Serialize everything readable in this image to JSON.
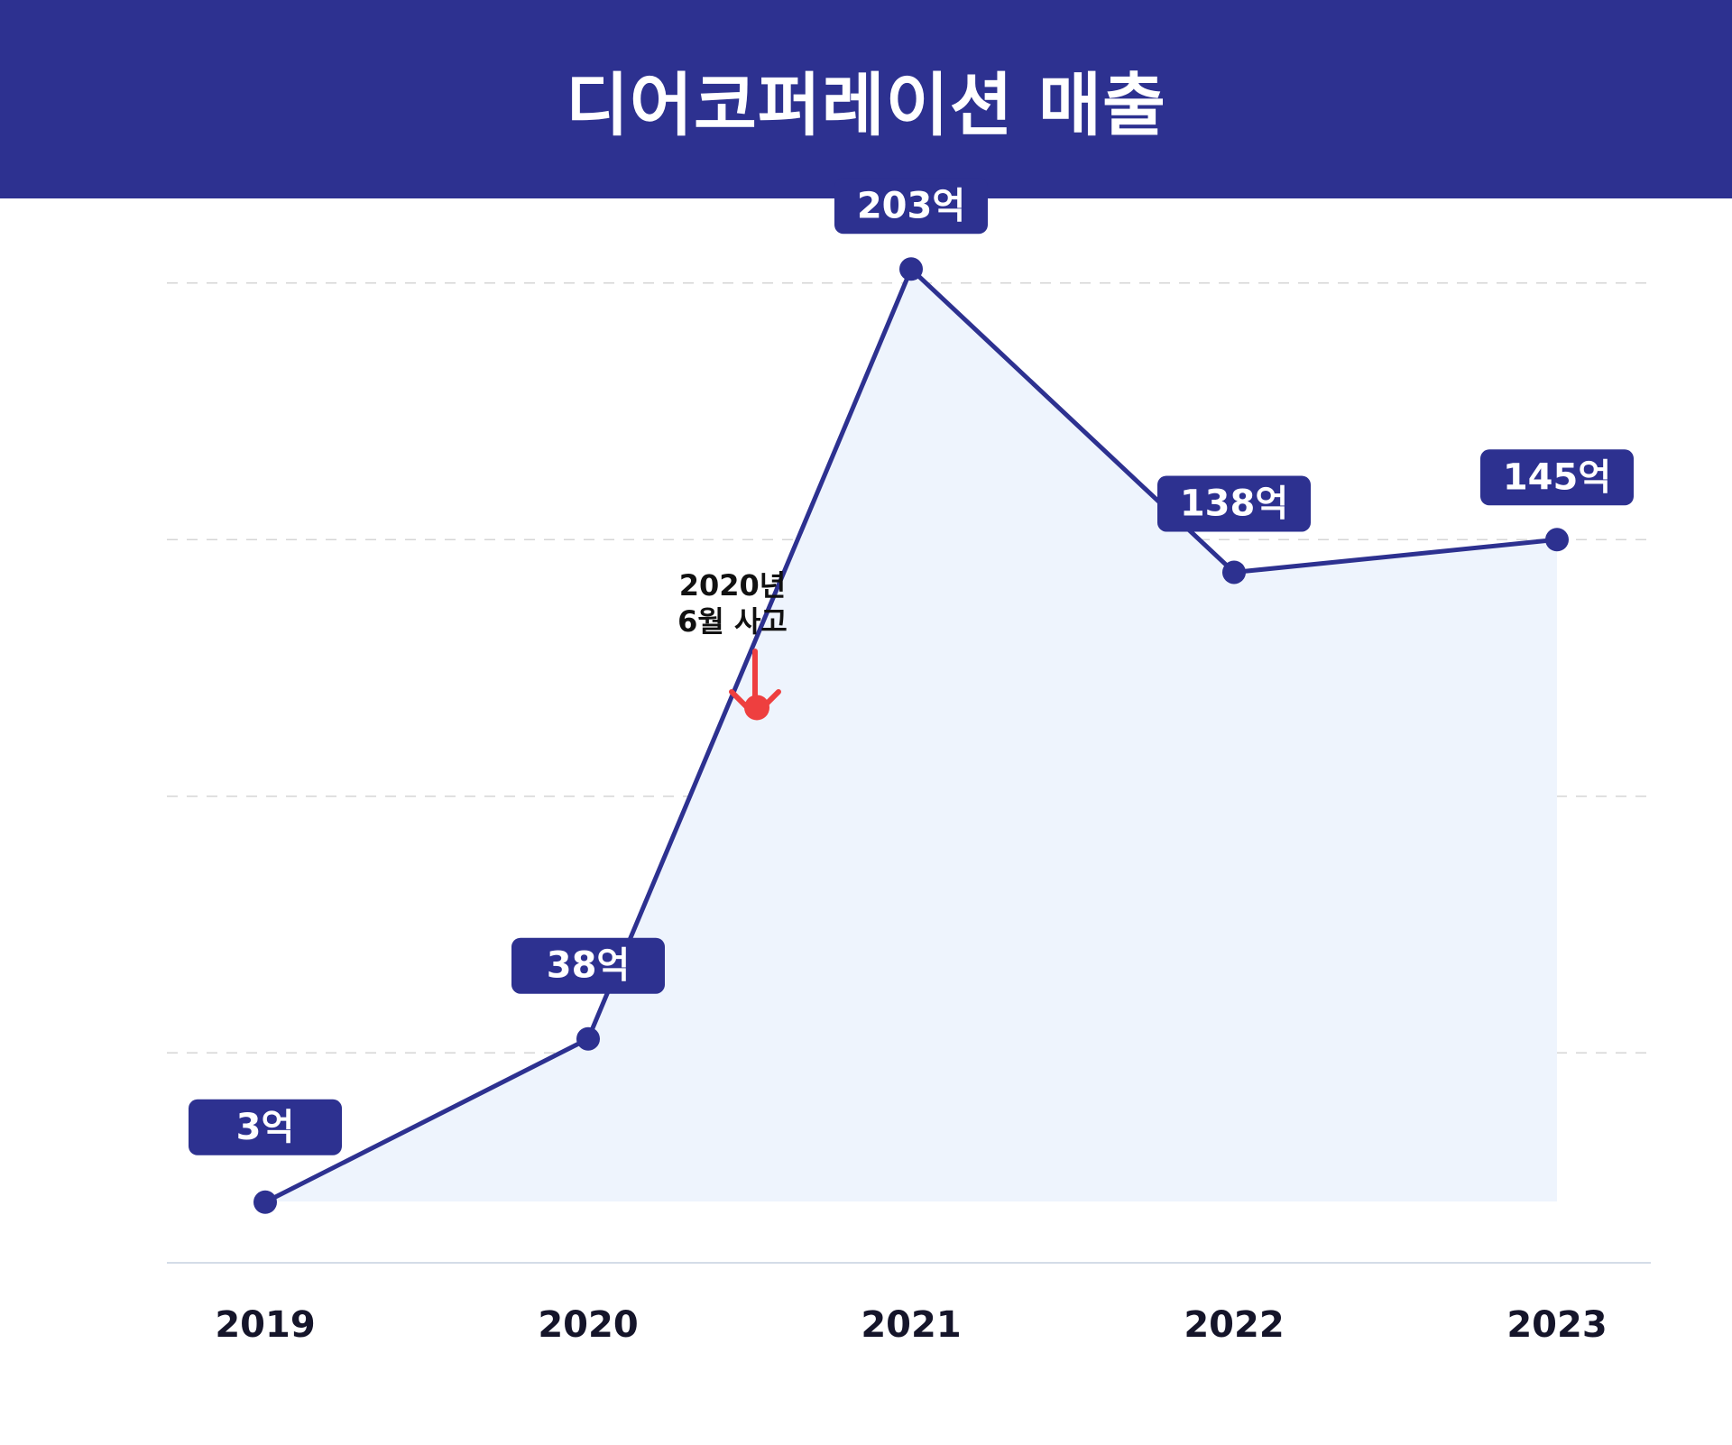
{
  "title": "디어코퍼레이션 매출",
  "colors": {
    "header_bg": "#2d3190",
    "line": "#2d3190",
    "area_fill": "#eef4fd",
    "label_bg": "#2d3190",
    "event": "#ee3f3f",
    "grid": "#d6d6d6",
    "axis": "#d4dce8",
    "tick_text": "#15152a"
  },
  "chart_data": {
    "type": "area",
    "categories": [
      "2019",
      "2020",
      "2021",
      "2022",
      "2023"
    ],
    "series": [
      {
        "values": [
          3,
          38,
          203,
          138,
          145
        ],
        "labels": [
          "3억",
          "38억",
          "203억",
          "138억",
          "145억"
        ]
      }
    ],
    "unit": "억",
    "ylim": [
      -10,
      222
    ],
    "grid": "horizontal-dashed",
    "legend": "none",
    "annotations": [
      {
        "text_lines": [
          "2020년",
          "6월 사고"
        ],
        "x": "2020-06",
        "y": 109,
        "marker": "red-dot-with-down-arrow"
      }
    ]
  }
}
